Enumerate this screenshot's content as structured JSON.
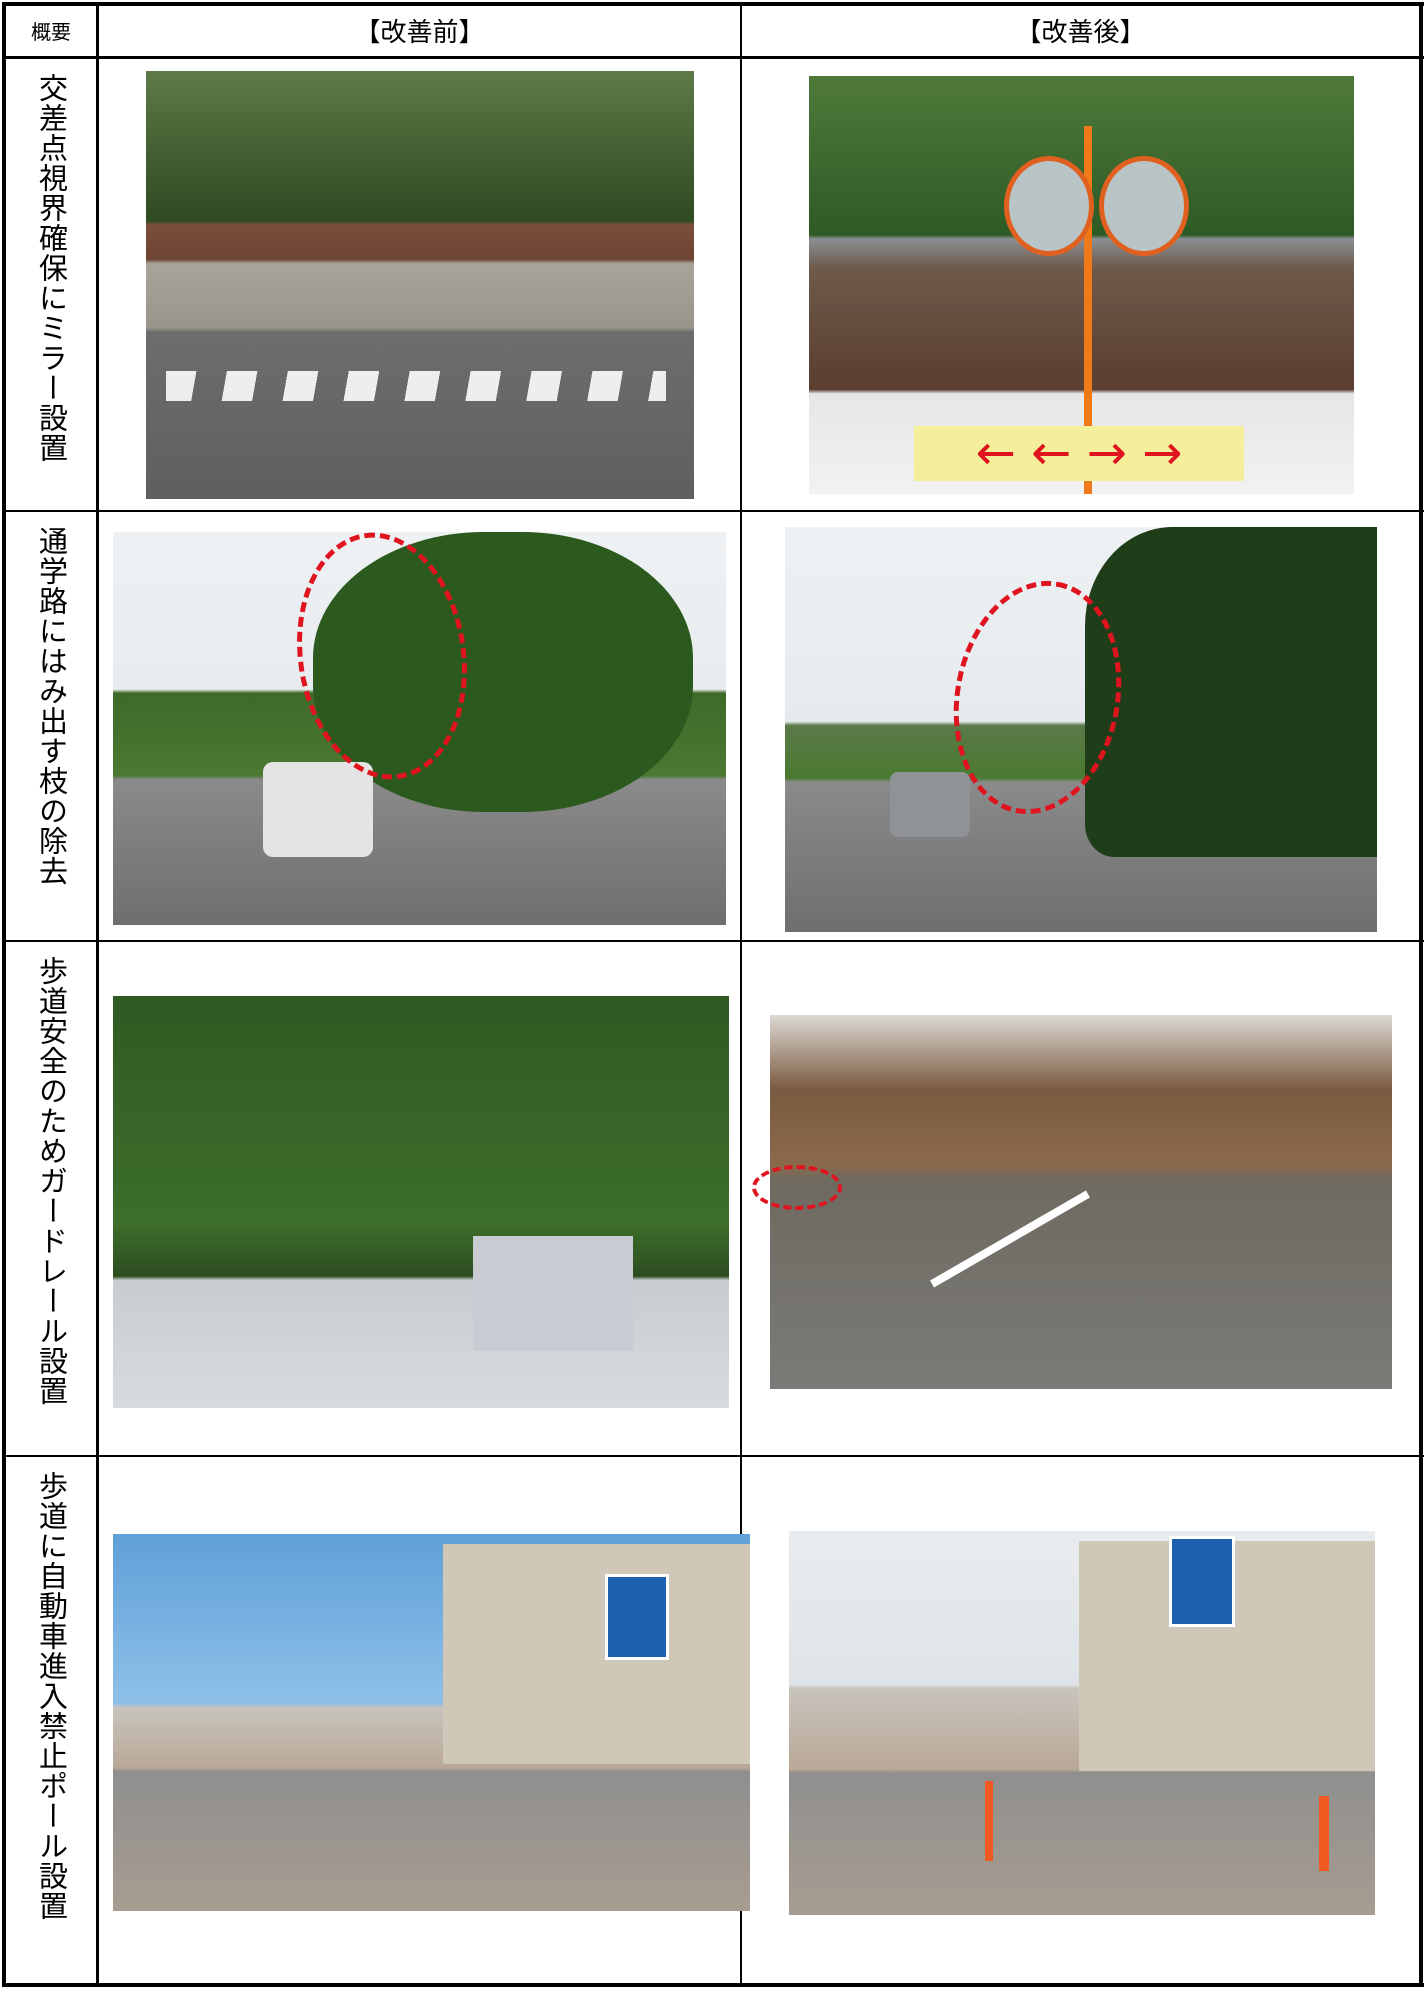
{
  "table": {
    "header": [
      "概要",
      "【改善前】",
      "【改善後】"
    ],
    "rows": [
      {
        "summary": "交差点視界確保にミラー設置"
      },
      {
        "summary": "通学路にはみ出す枝の除去"
      },
      {
        "summary": "歩道安全のためガードレール設置"
      },
      {
        "summary": "歩道に自動車進入禁止ポール設置"
      }
    ]
  }
}
